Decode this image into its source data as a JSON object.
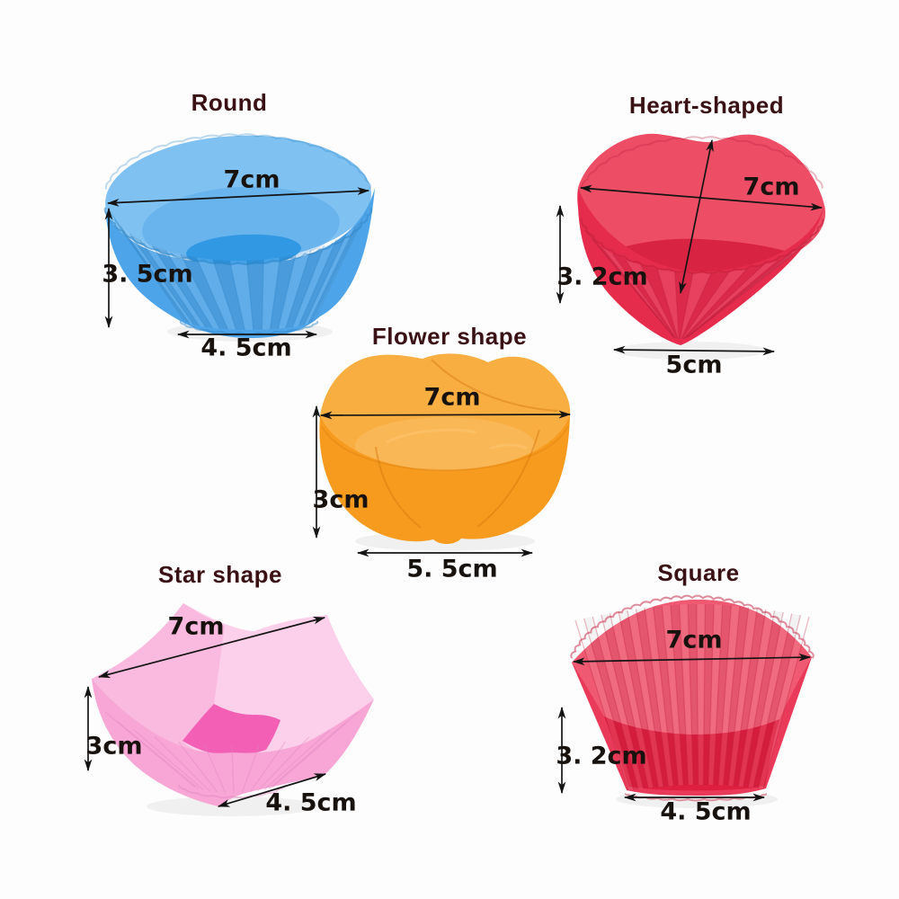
{
  "page": {
    "description": "Silicone cupcake mold size diagram with five shapes",
    "colors": {
      "background": "#fdfdfd",
      "title_text": "#3a1114",
      "dimension_text": "#18120f",
      "arrow": "#141414"
    }
  },
  "products": [
    {
      "name": "Round",
      "shape": "round",
      "dims": {
        "top_width": "7cm",
        "height": "3. 5cm",
        "bottom_width": "4. 5cm"
      },
      "palette": {
        "main": "#4ea4e8",
        "light": "#7fc2f2",
        "deep": "#2d9ae6",
        "line": "#2f86c6"
      }
    },
    {
      "name": "Heart-shaped",
      "shape": "heart",
      "dims": {
        "top_width": "7cm",
        "height": "3. 2cm",
        "bottom_width": "5cm"
      },
      "palette": {
        "main": "#e62c4d",
        "light": "#ee4d66",
        "deep": "#d82342",
        "line": "#bb1d3a"
      }
    },
    {
      "name": "Flower shape",
      "shape": "flower",
      "dims": {
        "top_width": "7cm",
        "height": "3cm",
        "bottom_width": "5. 5cm"
      },
      "palette": {
        "main": "#f79b1e",
        "light": "#f9ae42",
        "deep": "#ef8d13",
        "line": "#d87c10",
        "hi": "#fcc068"
      }
    },
    {
      "name": "Star shape",
      "shape": "star",
      "dims": {
        "top_width": "7cm",
        "height": "3cm",
        "bottom_width": "4. 5cm"
      },
      "palette": {
        "main": "#f7a6d6",
        "light": "#fcd0ea",
        "deep": "#f25fb4",
        "line": "#e286c2"
      }
    },
    {
      "name": "Square",
      "shape": "square",
      "dims": {
        "top_width": "7cm",
        "height": "3. 2cm",
        "bottom_width": "4. 5cm"
      },
      "palette": {
        "main": "#ea3a59",
        "light": "#ef5a72",
        "deep": "#de1f3f",
        "line": "#c01e3b"
      }
    }
  ]
}
